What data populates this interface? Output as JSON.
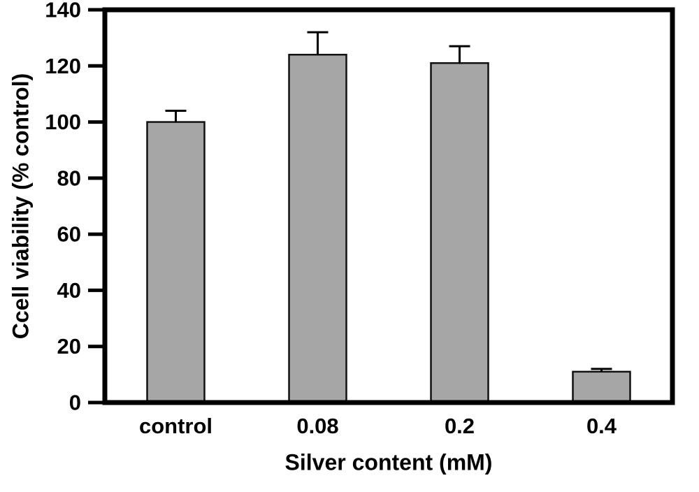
{
  "chart_data": {
    "type": "bar",
    "title": "",
    "categories": [
      "control",
      "0.08",
      "0.2",
      "0.4"
    ],
    "values": [
      100,
      124,
      121,
      11
    ],
    "errors_up": [
      4,
      8,
      6,
      1
    ],
    "xlabel": "Silver content (mM)",
    "ylabel": "Ccell viability (% control)",
    "ylim": [
      0,
      140
    ],
    "ytick_step": 20,
    "yticks": [
      0,
      20,
      40,
      60,
      80,
      100,
      120,
      140
    ],
    "bar_color": "#a6a6a6",
    "bar_edge_color": "#111111",
    "frame_color": "#000000",
    "background_color": "#ffffff",
    "grid": false,
    "legend": false
  }
}
